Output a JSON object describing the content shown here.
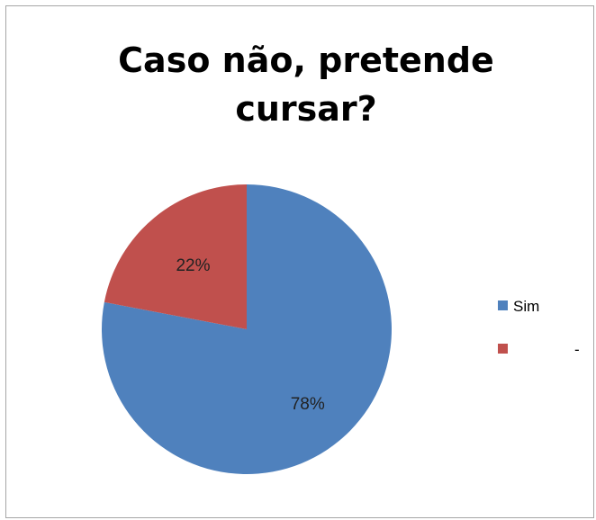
{
  "chart_data": {
    "type": "pie",
    "title_lines": [
      "Caso não, pretende",
      "cursar?"
    ],
    "categories": [
      "Sim",
      "-"
    ],
    "values": [
      78,
      22
    ],
    "data_labels": [
      "78%",
      "22%"
    ],
    "colors": [
      "#4f81bd",
      "#c0504d"
    ],
    "legend_position": "right"
  }
}
